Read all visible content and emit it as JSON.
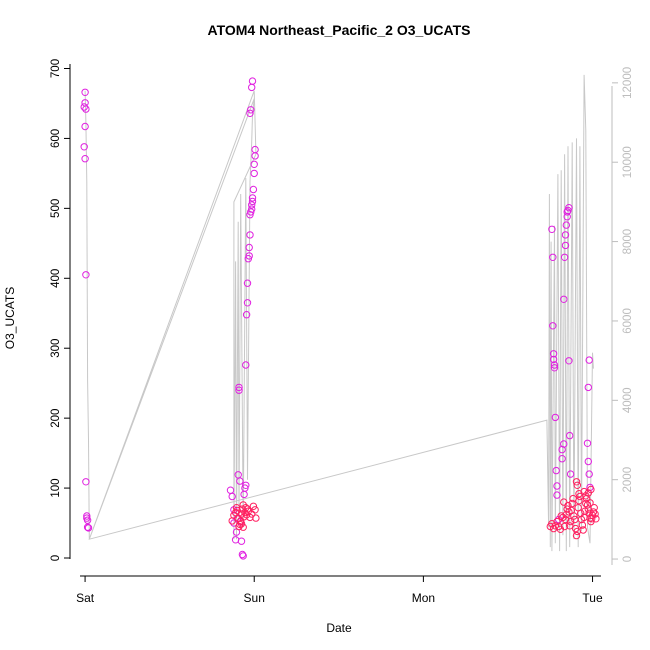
{
  "chart_data": {
    "type": "scatter",
    "title": "ATOM4 Northeast_Pacific_2 O3_UCATS",
    "xlabel": "Date",
    "ylabel": "O3_UCATS",
    "x_axis": {
      "type": "time",
      "ticks": [
        "Sat",
        "Sun",
        "Mon",
        "Tue"
      ],
      "range_days": [
        -0.03,
        3.05
      ]
    },
    "y_left": {
      "ylim": [
        -10,
        705
      ],
      "ticks": [
        0,
        100,
        200,
        300,
        400,
        500,
        600,
        700
      ]
    },
    "y_right": {
      "ylim": [
        -150,
        12450
      ],
      "ticks": [
        0,
        2000,
        4000,
        6000,
        8000,
        10000,
        12000
      ]
    },
    "grid": false,
    "colors": {
      "points_magenta": "#e020e0",
      "points_pink": "#ff2060",
      "altitude_line": "#c8c8c8",
      "right_axis": "#bdbdbd"
    },
    "series": [
      {
        "role": "points_magenta",
        "points": [
          [
            0.0,
            666
          ],
          [
            0.0,
            651
          ],
          [
            -0.005,
            645
          ],
          [
            0.005,
            642
          ],
          [
            0.0,
            617
          ],
          [
            -0.005,
            588
          ],
          [
            0.0,
            571
          ],
          [
            0.005,
            405
          ],
          [
            0.005,
            109
          ],
          [
            0.01,
            60
          ],
          [
            0.01,
            57
          ],
          [
            0.015,
            54
          ],
          [
            0.015,
            44
          ],
          [
            0.02,
            43
          ],
          [
            0.86,
            97
          ],
          [
            0.87,
            88
          ],
          [
            0.88,
            69
          ],
          [
            0.88,
            50
          ],
          [
            0.89,
            26
          ],
          [
            0.895,
            37
          ],
          [
            0.9,
            56
          ],
          [
            0.905,
            119
          ],
          [
            0.91,
            244
          ],
          [
            0.91,
            240
          ],
          [
            0.915,
            110
          ],
          [
            0.92,
            52
          ],
          [
            0.925,
            24
          ],
          [
            0.93,
            5
          ],
          [
            0.935,
            3
          ],
          [
            0.94,
            91
          ],
          [
            0.945,
            100
          ],
          [
            0.95,
            104
          ],
          [
            0.95,
            276
          ],
          [
            0.955,
            348
          ],
          [
            0.96,
            365
          ],
          [
            0.96,
            393
          ],
          [
            0.965,
            428
          ],
          [
            0.97,
            432
          ],
          [
            0.97,
            444
          ],
          [
            0.975,
            462
          ],
          [
            0.975,
            491
          ],
          [
            0.98,
            495
          ],
          [
            0.985,
            499
          ],
          [
            0.985,
            505
          ],
          [
            0.99,
            510
          ],
          [
            0.99,
            515
          ],
          [
            0.995,
            527
          ],
          [
            1.0,
            550
          ],
          [
            1.0,
            563
          ],
          [
            1.005,
            575
          ],
          [
            1.005,
            584
          ],
          [
            0.975,
            636
          ],
          [
            0.98,
            641
          ],
          [
            0.985,
            673
          ],
          [
            0.99,
            682
          ],
          [
            2.76,
            470
          ],
          [
            2.765,
            430
          ],
          [
            2.765,
            332
          ],
          [
            2.77,
            292
          ],
          [
            2.77,
            284
          ],
          [
            2.775,
            276
          ],
          [
            2.775,
            272
          ],
          [
            2.78,
            201
          ],
          [
            2.785,
            125
          ],
          [
            2.79,
            103
          ],
          [
            2.79,
            90
          ],
          [
            2.8,
            55
          ],
          [
            2.82,
            142
          ],
          [
            2.82,
            155
          ],
          [
            2.83,
            163
          ],
          [
            2.83,
            370
          ],
          [
            2.835,
            430
          ],
          [
            2.84,
            447
          ],
          [
            2.84,
            462
          ],
          [
            2.845,
            476
          ],
          [
            2.85,
            488
          ],
          [
            2.85,
            495
          ],
          [
            2.855,
            497
          ],
          [
            2.86,
            501
          ],
          [
            2.86,
            282
          ],
          [
            2.865,
            175
          ],
          [
            2.87,
            120
          ],
          [
            2.98,
            283
          ],
          [
            2.975,
            244
          ],
          [
            2.97,
            164
          ],
          [
            2.975,
            138
          ],
          [
            2.98,
            120
          ],
          [
            2.985,
            101
          ]
        ]
      },
      {
        "role": "points_pink",
        "points": [
          [
            0.88,
            61
          ],
          [
            0.89,
            65
          ],
          [
            0.895,
            72
          ],
          [
            0.9,
            68
          ],
          [
            0.905,
            57
          ],
          [
            0.91,
            45
          ],
          [
            0.915,
            48
          ],
          [
            0.92,
            53
          ],
          [
            0.925,
            63
          ],
          [
            0.93,
            70
          ],
          [
            0.935,
            76
          ],
          [
            0.94,
            59
          ],
          [
            0.945,
            65
          ],
          [
            0.95,
            72
          ],
          [
            0.96,
            70
          ],
          [
            0.955,
            62
          ],
          [
            0.965,
            67
          ],
          [
            0.975,
            58
          ],
          [
            0.985,
            63
          ],
          [
            0.995,
            74
          ],
          [
            1.005,
            69
          ],
          [
            1.01,
            57
          ],
          [
            0.87,
            53
          ],
          [
            0.935,
            44
          ],
          [
            0.925,
            49
          ],
          [
            2.75,
            45
          ],
          [
            2.76,
            49
          ],
          [
            2.77,
            42
          ],
          [
            2.78,
            46
          ],
          [
            2.79,
            52
          ],
          [
            2.8,
            45
          ],
          [
            2.81,
            41
          ],
          [
            2.815,
            60
          ],
          [
            2.825,
            58
          ],
          [
            2.83,
            80
          ],
          [
            2.835,
            45
          ],
          [
            2.84,
            55
          ],
          [
            2.845,
            62
          ],
          [
            2.85,
            70
          ],
          [
            2.855,
            75
          ],
          [
            2.86,
            66
          ],
          [
            2.865,
            46
          ],
          [
            2.87,
            52
          ],
          [
            2.875,
            68
          ],
          [
            2.88,
            78
          ],
          [
            2.885,
            85
          ],
          [
            2.89,
            60
          ],
          [
            2.895,
            55
          ],
          [
            2.9,
            42
          ],
          [
            2.905,
            32
          ],
          [
            2.91,
            38
          ],
          [
            2.915,
            72
          ],
          [
            2.92,
            82
          ],
          [
            2.925,
            88
          ],
          [
            2.93,
            64
          ],
          [
            2.935,
            55
          ],
          [
            2.94,
            47
          ],
          [
            2.945,
            40
          ],
          [
            2.95,
            58
          ],
          [
            2.955,
            67
          ],
          [
            2.96,
            78
          ],
          [
            2.965,
            85
          ],
          [
            2.97,
            76
          ],
          [
            2.975,
            70
          ],
          [
            2.98,
            64
          ],
          [
            2.985,
            57
          ],
          [
            2.99,
            52
          ],
          [
            2.995,
            56
          ],
          [
            3.0,
            61
          ],
          [
            3.005,
            66
          ],
          [
            3.01,
            72
          ],
          [
            3.015,
            63
          ],
          [
            3.02,
            56
          ],
          [
            2.905,
            109
          ],
          [
            2.91,
            104
          ],
          [
            2.92,
            92
          ],
          [
            2.95,
            95
          ],
          [
            2.96,
            89
          ],
          [
            2.975,
            93
          ],
          [
            2.985,
            79
          ],
          [
            2.99,
            98
          ]
        ]
      },
      {
        "role": "altitude_line",
        "axis": "right",
        "points": [
          [
            0.0,
            11800
          ],
          [
            0.005,
            11000
          ],
          [
            0.01,
            9500
          ],
          [
            0.015,
            4500
          ],
          [
            0.02,
            3000
          ],
          [
            0.025,
            500
          ],
          [
            1.0,
            11800
          ],
          [
            1.005,
            11000
          ],
          [
            1.01,
            10200
          ],
          [
            0.88,
            9000
          ],
          [
            0.88,
            500
          ],
          [
            0.89,
            7500
          ],
          [
            0.895,
            500
          ],
          [
            0.905,
            8500
          ],
          [
            0.91,
            1000
          ],
          [
            0.92,
            9200
          ],
          [
            0.935,
            800
          ],
          [
            0.95,
            9600
          ],
          [
            0.96,
            2000
          ],
          [
            0.975,
            9500
          ],
          [
            0.985,
            10500
          ],
          [
            0.99,
            11200
          ],
          [
            1.0,
            11600
          ],
          [
            0.025,
            500
          ],
          [
            2.73,
            3500
          ],
          [
            2.74,
            800
          ],
          [
            2.745,
            9200
          ],
          [
            2.75,
            300
          ],
          [
            2.755,
            8000
          ],
          [
            2.76,
            200
          ],
          [
            2.775,
            8400
          ],
          [
            2.78,
            400
          ],
          [
            2.795,
            9700
          ],
          [
            2.805,
            200
          ],
          [
            2.815,
            9800
          ],
          [
            2.825,
            600
          ],
          [
            2.835,
            10200
          ],
          [
            2.845,
            200
          ],
          [
            2.855,
            10400
          ],
          [
            2.865,
            300
          ],
          [
            2.88,
            10500
          ],
          [
            2.89,
            500
          ],
          [
            2.905,
            10600
          ],
          [
            2.915,
            300
          ],
          [
            2.925,
            10400
          ],
          [
            2.935,
            700
          ],
          [
            2.95,
            12200
          ],
          [
            2.96,
            10800
          ],
          [
            2.97,
            800
          ],
          [
            2.985,
            400
          ],
          [
            3.0,
            5200
          ],
          [
            3.005,
            4800
          ]
        ]
      }
    ]
  }
}
